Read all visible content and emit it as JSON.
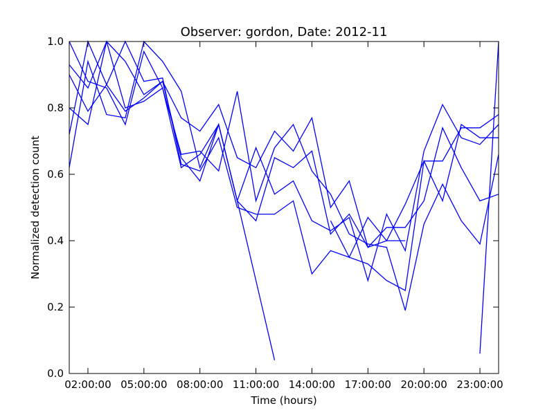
{
  "chart_data": {
    "type": "line",
    "title": "Observer: gordon, Date: 2012-11",
    "xlabel": "Time (hours)",
    "ylabel": "Normalized detection count",
    "xlim": [
      "01:00:00",
      "24:00:00"
    ],
    "ylim": [
      0,
      1.0
    ],
    "x_ticks": [
      "02:00:00",
      "05:00:00",
      "08:00:00",
      "11:00:00",
      "14:00:00",
      "17:00:00",
      "20:00:00",
      "23:00:00"
    ],
    "y_ticks": [
      "0.0",
      "0.2",
      "0.4",
      "0.6",
      "0.8",
      "1.0"
    ],
    "grid": false,
    "line_color": "#0000ff",
    "series": [
      {
        "x": [
          "01:00:00",
          "02:00:00",
          "03:00:00",
          "04:00:00",
          "05:00:00",
          "06:00:00",
          "07:00:00",
          "08:00:00",
          "09:00:00",
          "10:00:00",
          "11:00:00",
          "12:00:00",
          "13:00:00",
          "14:00:00",
          "15:00:00",
          "16:00:00",
          "17:00:00",
          "18:00:00",
          "19:00:00",
          "20:00:00",
          "21:00:00",
          "22:00:00",
          "23:00:00",
          "24:00:00"
        ],
        "y": [
          0.62,
          0.94,
          0.78,
          0.77,
          1.0,
          0.94,
          0.85,
          0.62,
          0.75,
          0.52,
          0.68,
          0.54,
          0.58,
          0.46,
          0.43,
          0.47,
          0.28,
          0.48,
          0.37,
          0.67,
          0.81,
          0.71,
          0.69,
          0.75
        ]
      },
      {
        "x": [
          "01:00:00",
          "02:00:00",
          "03:00:00",
          "04:00:00",
          "05:00:00",
          "06:00:00",
          "07:00:00",
          "08:00:00",
          "09:00:00",
          "10:00:00",
          "11:00:00",
          "12:00:00",
          "13:00:00",
          "14:00:00",
          "15:00:00",
          "16:00:00",
          "17:00:00",
          "18:00:00",
          "19:00:00",
          "20:00:00",
          "21:00:00",
          "22:00:00",
          "23:00:00",
          "24:00:00"
        ],
        "y": [
          0.72,
          1.0,
          0.87,
          0.79,
          0.83,
          0.88,
          0.77,
          0.73,
          0.81,
          0.65,
          0.62,
          0.73,
          0.67,
          0.77,
          0.5,
          0.58,
          0.38,
          0.44,
          0.44,
          0.52,
          0.74,
          0.62,
          0.52,
          0.54
        ]
      },
      {
        "x": [
          "01:00:00",
          "02:00:00",
          "03:00:00",
          "04:00:00",
          "05:00:00",
          "06:00:00",
          "07:00:00",
          "08:00:00",
          "09:00:00",
          "10:00:00",
          "11:00:00",
          "12:00:00",
          "13:00:00",
          "14:00:00",
          "15:00:00",
          "16:00:00",
          "17:00:00",
          "18:00:00",
          "19:00:00",
          "20:00:00",
          "21:00:00",
          "22:00:00",
          "23:00:00",
          "24:00:00"
        ],
        "y": [
          0.8,
          0.75,
          1.0,
          0.94,
          0.84,
          0.88,
          0.65,
          0.58,
          0.75,
          0.52,
          0.46,
          0.65,
          0.62,
          0.67,
          0.42,
          0.48,
          0.38,
          0.4,
          0.4,
          null,
          null,
          null,
          0.06,
          1.0
        ]
      },
      {
        "x": [
          "01:00:00",
          "02:00:00",
          "03:00:00",
          "04:00:00",
          "05:00:00",
          "06:00:00",
          "07:00:00",
          "08:00:00",
          "09:00:00",
          "10:00:00",
          "11:00:00",
          "12:00:00",
          "13:00:00",
          "14:00:00",
          "15:00:00",
          "16:00:00",
          "17:00:00",
          "18:00:00",
          "19:00:00",
          "20:00:00",
          "21:00:00",
          "22:00:00",
          "23:00:00",
          "24:00:00"
        ],
        "y": [
          0.9,
          0.79,
          0.87,
          1.0,
          0.88,
          0.89,
          0.63,
          0.61,
          0.71,
          0.5,
          0.48,
          0.48,
          0.52,
          0.3,
          0.37,
          0.35,
          0.33,
          0.28,
          0.25,
          0.64,
          0.52,
          0.75,
          0.71,
          0.71
        ]
      },
      {
        "x": [
          "01:00:00",
          "02:00:00",
          "03:00:00",
          "04:00:00",
          "05:00:00",
          "06:00:00",
          "07:00:00",
          "08:00:00",
          "09:00:00",
          "10:00:00",
          "11:00:00",
          "12:00:00",
          "13:00:00",
          "14:00:00",
          "15:00:00",
          "16:00:00",
          "17:00:00",
          "18:00:00",
          "19:00:00",
          "20:00:00",
          "21:00:00",
          "22:00:00",
          "23:00:00",
          "24:00:00"
        ],
        "y": [
          1.0,
          0.88,
          0.86,
          0.75,
          0.97,
          0.86,
          0.66,
          0.67,
          0.61,
          0.85,
          0.52,
          0.68,
          0.75,
          0.61,
          0.54,
          0.42,
          0.39,
          0.38,
          0.19,
          0.45,
          0.57,
          0.46,
          0.39,
          0.66
        ]
      },
      {
        "x": [
          "01:00:00",
          "02:00:00",
          "03:00:00",
          "04:00:00",
          "05:00:00",
          "06:00:00",
          "07:00:00",
          "08:00:00",
          "09:00:00",
          "10:00:00",
          "11:00:00",
          "12:00:00",
          "13:00:00",
          "14:00:00",
          "15:00:00",
          "16:00:00",
          "17:00:00",
          "18:00:00",
          "19:00:00",
          "20:00:00",
          "21:00:00",
          "22:00:00",
          "23:00:00",
          "24:00:00"
        ],
        "y": [
          0.93,
          0.86,
          1.0,
          0.8,
          0.82,
          0.86,
          0.62,
          0.66,
          0.75,
          0.52,
          0.28,
          0.04,
          null,
          null,
          0.46,
          0.35,
          0.47,
          0.4,
          0.51,
          0.64,
          0.64,
          0.74,
          0.74,
          0.78
        ]
      }
    ]
  }
}
